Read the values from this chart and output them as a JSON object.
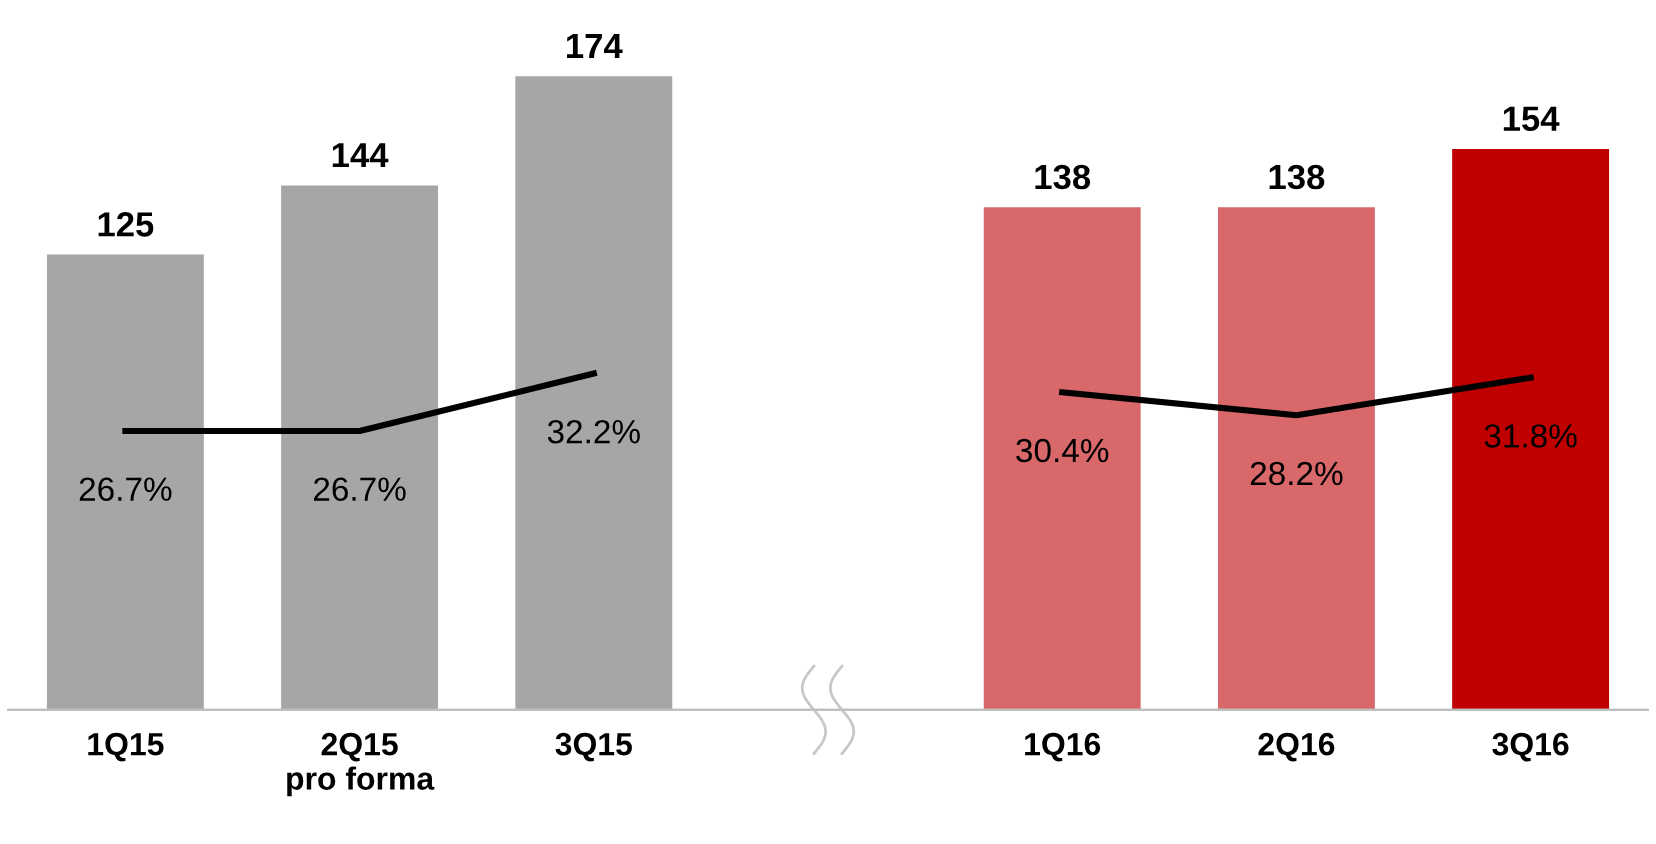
{
  "chart_data": {
    "type": "bar",
    "categories": [
      "1Q15",
      "2Q15\npro forma",
      "3Q15",
      null,
      "1Q16",
      "2Q16",
      "3Q16"
    ],
    "series": [
      {
        "values": [
          125,
          144,
          174,
          null,
          138,
          138,
          154
        ],
        "colors": [
          "#a6a6a6",
          "#a6a6a6",
          "#a6a6a6",
          null,
          "#d9686a",
          "#d9686a",
          "#c00000"
        ],
        "data_labels": true
      },
      {
        "type": "line",
        "axis": "y2",
        "color": "#000000",
        "values": [
          26.7,
          26.7,
          32.2,
          null,
          30.4,
          28.2,
          31.8
        ],
        "value_labels": [
          "26.7%",
          "26.7%",
          "32.2%",
          null,
          "30.4%",
          "28.2%",
          "31.8%"
        ],
        "marker": "none",
        "line_style": "solid"
      }
    ],
    "tick_labels": "x",
    "grid": false,
    "legend": false
  }
}
